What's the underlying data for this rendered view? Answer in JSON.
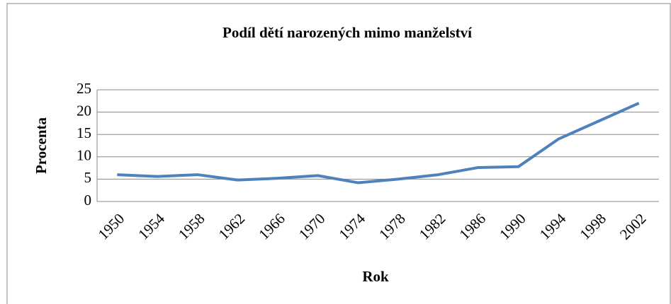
{
  "chart_data": {
    "type": "line",
    "title": "Podíl dětí narozených mimo manželství",
    "x_label": "Rok",
    "y_label": "Procenta",
    "categories": [
      "1950",
      "1954",
      "1958",
      "1962",
      "1966",
      "1970",
      "1974",
      "1978",
      "1982",
      "1986",
      "1990",
      "1994",
      "1998",
      "2002"
    ],
    "series": [
      {
        "name": "Procenta",
        "color": "#4f81bd",
        "values": [
          6.0,
          5.6,
          6.0,
          4.8,
          5.2,
          5.8,
          4.2,
          5.0,
          6.0,
          7.6,
          7.8,
          14.0,
          18.0,
          22.0
        ]
      }
    ],
    "ylim": [
      0,
      25
    ],
    "yticks": [
      0,
      5,
      10,
      15,
      20,
      25
    ],
    "grid": true
  }
}
